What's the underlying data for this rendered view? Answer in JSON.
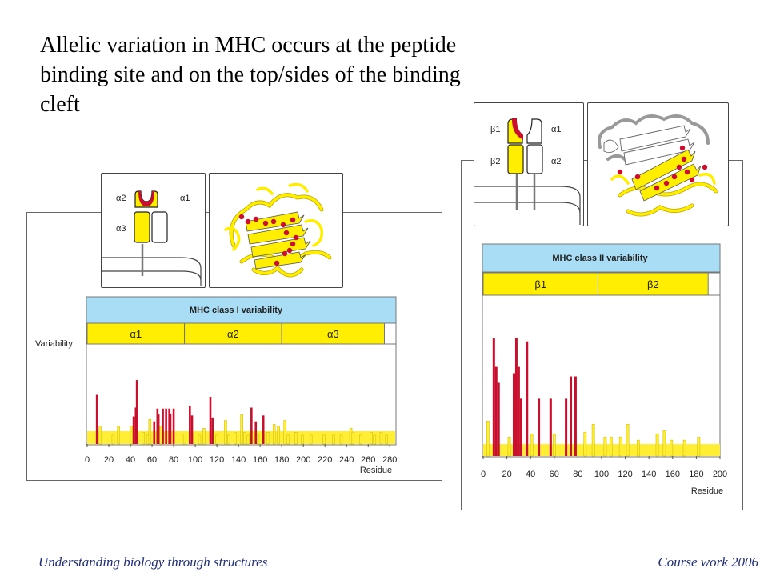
{
  "slide": {
    "title": "Allelic variation in MHC occurs at the peptide binding site and on the top/sides of the binding cleft"
  },
  "footer": {
    "left": "Understanding biology through structures",
    "right": "Course work 2006"
  },
  "colors": {
    "variable_residue_red": "#c8102e",
    "background_variability_yellow": "#ffee33",
    "header_blue": "#a9dcf5",
    "domain_yellow": "#ffee00",
    "footer_text": "#1f2d78"
  },
  "class_one": {
    "header": "MHC class I variability",
    "ylabel": "Variability",
    "xlabel": "Residue",
    "schematic_labels": [
      "α2",
      "α1",
      "α3"
    ],
    "domains": [
      "α1",
      "α2",
      "α3"
    ],
    "domain_bounds": [
      0,
      90,
      180,
      275
    ],
    "xlim": [
      0,
      285
    ],
    "ticks": [
      "0",
      "20",
      "40",
      "60",
      "80",
      "100",
      "120",
      "140",
      "160",
      "180",
      "200",
      "220",
      "240",
      "260",
      "280"
    ],
    "red_bars": [
      {
        "residue": 9,
        "value": 0.5
      },
      {
        "residue": 43,
        "value": 0.28
      },
      {
        "residue": 45,
        "value": 0.37
      },
      {
        "residue": 46,
        "value": 0.28
      },
      {
        "residue": 46,
        "value": 0.65
      },
      {
        "residue": 62,
        "value": 0.23
      },
      {
        "residue": 65,
        "value": 0.36
      },
      {
        "residue": 66,
        "value": 0.3
      },
      {
        "residue": 70,
        "value": 0.36
      },
      {
        "residue": 73,
        "value": 0.36
      },
      {
        "residue": 76,
        "value": 0.36
      },
      {
        "residue": 77,
        "value": 0.31
      },
      {
        "residue": 80,
        "value": 0.36
      },
      {
        "residue": 95,
        "value": 0.39
      },
      {
        "residue": 97,
        "value": 0.29
      },
      {
        "residue": 114,
        "value": 0.48
      },
      {
        "residue": 116,
        "value": 0.27
      },
      {
        "residue": 152,
        "value": 0.37
      },
      {
        "residue": 156,
        "value": 0.23
      },
      {
        "residue": 163,
        "value": 0.29
      }
    ],
    "yellow_bars": [
      {
        "residue": 12,
        "value": 0.18
      },
      {
        "residue": 24,
        "value": 0.09
      },
      {
        "residue": 29,
        "value": 0.18
      },
      {
        "residue": 41,
        "value": 0.18
      },
      {
        "residue": 52,
        "value": 0.12
      },
      {
        "residue": 56,
        "value": 0.09
      },
      {
        "residue": 58,
        "value": 0.25
      },
      {
        "residue": 68,
        "value": 0.18
      },
      {
        "residue": 90,
        "value": 0.1
      },
      {
        "residue": 104,
        "value": 0.09
      },
      {
        "residue": 108,
        "value": 0.16
      },
      {
        "residue": 120,
        "value": 0.09
      },
      {
        "residue": 128,
        "value": 0.24
      },
      {
        "residue": 131,
        "value": 0.09
      },
      {
        "residue": 137,
        "value": 0.12
      },
      {
        "residue": 143,
        "value": 0.3
      },
      {
        "residue": 146,
        "value": 0.12
      },
      {
        "residue": 149,
        "value": 0.09
      },
      {
        "residue": 158,
        "value": 0.09
      },
      {
        "residue": 167,
        "value": 0.12
      },
      {
        "residue": 173,
        "value": 0.2
      },
      {
        "residue": 177,
        "value": 0.18
      },
      {
        "residue": 183,
        "value": 0.24
      },
      {
        "residue": 186,
        "value": 0.09
      },
      {
        "residue": 193,
        "value": 0.12
      },
      {
        "residue": 199,
        "value": 0.09
      },
      {
        "residue": 207,
        "value": 0.09
      },
      {
        "residue": 219,
        "value": 0.09
      },
      {
        "residue": 228,
        "value": 0.09
      },
      {
        "residue": 235,
        "value": 0.09
      },
      {
        "residue": 244,
        "value": 0.16
      },
      {
        "residue": 246,
        "value": 0.12
      },
      {
        "residue": 253,
        "value": 0.09
      },
      {
        "residue": 263,
        "value": 0.12
      },
      {
        "residue": 266,
        "value": 0.09
      },
      {
        "residue": 272,
        "value": 0.12
      },
      {
        "residue": 277,
        "value": 0.09
      }
    ]
  },
  "class_two": {
    "header": "MHC class II variability",
    "xlabel": "Residue",
    "schematic_labels": [
      "β1",
      "α1",
      "β2",
      "α2"
    ],
    "domains": [
      "β1",
      "β2"
    ],
    "domain_bounds": [
      0,
      97,
      190
    ],
    "xlim": [
      0,
      200
    ],
    "ticks": [
      "0",
      "20",
      "40",
      "60",
      "80",
      "100",
      "120",
      "140",
      "160",
      "180",
      "200"
    ],
    "red_bars": [
      {
        "residue": 9,
        "value": 0.74
      },
      {
        "residue": 11,
        "value": 0.56
      },
      {
        "residue": 13,
        "value": 0.46
      },
      {
        "residue": 26,
        "value": 0.52
      },
      {
        "residue": 28,
        "value": 0.74
      },
      {
        "residue": 30,
        "value": 0.56
      },
      {
        "residue": 32,
        "value": 0.36
      },
      {
        "residue": 37,
        "value": 0.72
      },
      {
        "residue": 47,
        "value": 0.36
      },
      {
        "residue": 57,
        "value": 0.36
      },
      {
        "residue": 70,
        "value": 0.36
      },
      {
        "residue": 74,
        "value": 0.5
      },
      {
        "residue": 78,
        "value": 0.5
      }
    ],
    "yellow_bars": [
      {
        "residue": 4,
        "value": 0.22
      },
      {
        "residue": 22,
        "value": 0.12
      },
      {
        "residue": 41,
        "value": 0.14
      },
      {
        "residue": 60,
        "value": 0.14
      },
      {
        "residue": 86,
        "value": 0.15
      },
      {
        "residue": 93,
        "value": 0.2
      },
      {
        "residue": 103,
        "value": 0.12
      },
      {
        "residue": 108,
        "value": 0.12
      },
      {
        "residue": 116,
        "value": 0.12
      },
      {
        "residue": 122,
        "value": 0.2
      },
      {
        "residue": 131,
        "value": 0.1
      },
      {
        "residue": 147,
        "value": 0.14
      },
      {
        "residue": 153,
        "value": 0.16
      },
      {
        "residue": 159,
        "value": 0.1
      },
      {
        "residue": 170,
        "value": 0.1
      },
      {
        "residue": 182,
        "value": 0.12
      }
    ]
  }
}
